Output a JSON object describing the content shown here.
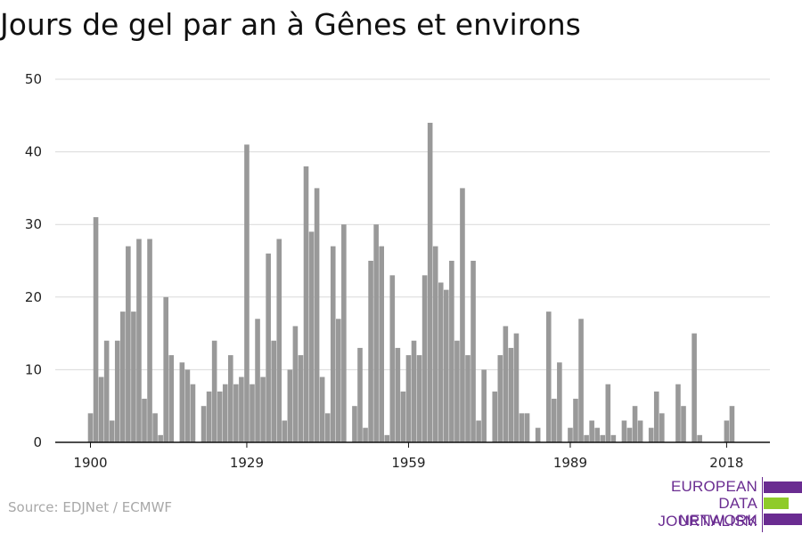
{
  "title": "Jours de gel par an à Gênes et environs",
  "source": "Source: EDJNet / ECMWF",
  "logo": {
    "lines": [
      "EUROPEAN",
      "DATA JOURNALISM",
      "NETWORK"
    ]
  },
  "colors": {
    "bar": "#999999",
    "grid": "#d9d9d9",
    "axis": "#111111",
    "logo_purple": "#6a2c91",
    "logo_green": "#8fcb2a"
  },
  "chart_data": {
    "type": "bar",
    "title": "Jours de gel par an à Gênes et environs",
    "xlabel": "",
    "ylabel": "",
    "ylim": [
      0,
      50
    ],
    "yticks": [
      0,
      10,
      20,
      30,
      40,
      50
    ],
    "xticks": [
      1900,
      1929,
      1959,
      1989,
      2018
    ],
    "grid": true,
    "x": [
      1900,
      1901,
      1902,
      1903,
      1904,
      1905,
      1906,
      1907,
      1908,
      1909,
      1910,
      1911,
      1912,
      1913,
      1914,
      1915,
      1916,
      1917,
      1918,
      1919,
      1920,
      1921,
      1922,
      1923,
      1924,
      1925,
      1926,
      1927,
      1928,
      1929,
      1930,
      1931,
      1932,
      1933,
      1934,
      1935,
      1936,
      1937,
      1938,
      1939,
      1940,
      1941,
      1942,
      1943,
      1944,
      1945,
      1946,
      1947,
      1948,
      1949,
      1950,
      1951,
      1952,
      1953,
      1954,
      1955,
      1956,
      1957,
      1958,
      1959,
      1960,
      1961,
      1962,
      1963,
      1964,
      1965,
      1966,
      1967,
      1968,
      1969,
      1970,
      1971,
      1972,
      1973,
      1974,
      1975,
      1976,
      1977,
      1978,
      1979,
      1980,
      1981,
      1982,
      1983,
      1984,
      1985,
      1986,
      1987,
      1988,
      1989,
      1990,
      1991,
      1992,
      1993,
      1994,
      1995,
      1996,
      1997,
      1998,
      1999,
      2000,
      2001,
      2002,
      2003,
      2004,
      2005,
      2006,
      2007,
      2008,
      2009,
      2010,
      2011,
      2012,
      2013,
      2014,
      2015,
      2016,
      2017,
      2018,
      2019
    ],
    "values": [
      4,
      31,
      9,
      14,
      3,
      14,
      18,
      27,
      18,
      28,
      6,
      28,
      4,
      1,
      20,
      12,
      0,
      11,
      10,
      8,
      0,
      5,
      7,
      14,
      7,
      8,
      12,
      8,
      9,
      41,
      8,
      17,
      9,
      26,
      14,
      28,
      3,
      10,
      16,
      12,
      38,
      29,
      35,
      9,
      4,
      27,
      17,
      30,
      0,
      5,
      13,
      2,
      25,
      30,
      27,
      1,
      23,
      13,
      7,
      12,
      14,
      12,
      23,
      44,
      27,
      22,
      21,
      25,
      14,
      35,
      12,
      25,
      3,
      10,
      0,
      7,
      12,
      16,
      13,
      15,
      4,
      4,
      0,
      2,
      0,
      18,
      6,
      11,
      0,
      2,
      6,
      17,
      1,
      3,
      2,
      1,
      8,
      1,
      0,
      3,
      2,
      5,
      3,
      0,
      2,
      7,
      4,
      0,
      0,
      8,
      5,
      0,
      15,
      1,
      0,
      0,
      0,
      0,
      3,
      5
    ]
  }
}
